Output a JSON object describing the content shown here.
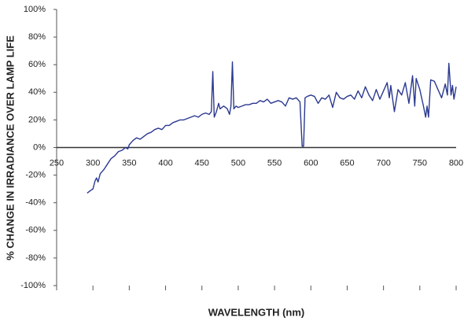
{
  "chart_data": {
    "type": "line",
    "xlabel": "WAVELENGTH (nm)",
    "ylabel": "% CHANGE IN IRRADIANCE OVER LAMP LIFE",
    "color": "#2b3990",
    "x": [
      292,
      297,
      300,
      303,
      305,
      307,
      310,
      315,
      320,
      325,
      330,
      335,
      340,
      345,
      348,
      350,
      355,
      360,
      365,
      370,
      375,
      380,
      385,
      390,
      395,
      400,
      405,
      410,
      415,
      420,
      425,
      430,
      435,
      440,
      445,
      450,
      455,
      460,
      463,
      465,
      467,
      470,
      473,
      475,
      480,
      485,
      488,
      490,
      492,
      494,
      497,
      500,
      505,
      510,
      515,
      520,
      525,
      530,
      535,
      540,
      545,
      550,
      555,
      560,
      565,
      570,
      575,
      580,
      585,
      588,
      590,
      592,
      595,
      600,
      605,
      610,
      615,
      620,
      625,
      630,
      635,
      640,
      645,
      650,
      655,
      660,
      665,
      670,
      675,
      680,
      685,
      690,
      695,
      700,
      705,
      708,
      710,
      715,
      720,
      725,
      730,
      735,
      740,
      743,
      745,
      750,
      755,
      758,
      760,
      762,
      765,
      770,
      775,
      780,
      785,
      788,
      790,
      793,
      795,
      797,
      800
    ],
    "values": [
      -33,
      -31,
      -30,
      -24,
      -22,
      -25,
      -19,
      -16,
      -12,
      -8,
      -6,
      -3,
      -2,
      0,
      -1,
      2,
      5,
      7,
      6,
      8,
      10,
      11,
      13,
      14,
      13,
      16,
      16,
      18,
      19,
      20,
      20,
      21,
      22,
      23,
      22,
      24,
      25,
      24,
      26,
      55,
      22,
      26,
      32,
      28,
      30,
      28,
      24,
      30,
      62,
      28,
      30,
      29,
      30,
      31,
      31,
      32,
      32,
      34,
      33,
      35,
      32,
      33,
      34,
      33,
      30,
      36,
      35,
      36,
      33,
      1,
      1,
      36,
      37,
      38,
      37,
      32,
      36,
      35,
      38,
      29,
      40,
      36,
      35,
      37,
      38,
      35,
      41,
      36,
      44,
      38,
      34,
      42,
      35,
      41,
      47,
      36,
      45,
      26,
      42,
      38,
      47,
      32,
      52,
      30,
      50,
      42,
      30,
      22,
      30,
      22,
      49,
      48,
      42,
      36,
      46,
      38,
      61,
      38,
      45,
      35,
      44
    ],
    "xlim": [
      250,
      800
    ],
    "xticks": [
      250,
      300,
      350,
      400,
      450,
      500,
      550,
      600,
      650,
      700,
      750,
      800
    ],
    "ylim": [
      -100,
      100
    ],
    "yticks": [
      {
        "value": -100,
        "label": "-100%"
      },
      {
        "value": -80,
        "label": "-80%"
      },
      {
        "value": -60,
        "label": "-60%"
      },
      {
        "value": -40,
        "label": "-40%"
      },
      {
        "value": -20,
        "label": "-20%"
      },
      {
        "value": 0,
        "label": "0%"
      },
      {
        "value": 20,
        "label": "20%"
      },
      {
        "value": 40,
        "label": "40%"
      },
      {
        "value": 60,
        "label": "60%"
      },
      {
        "value": 80,
        "label": "80%"
      },
      {
        "value": 100,
        "label": "100%"
      }
    ]
  }
}
